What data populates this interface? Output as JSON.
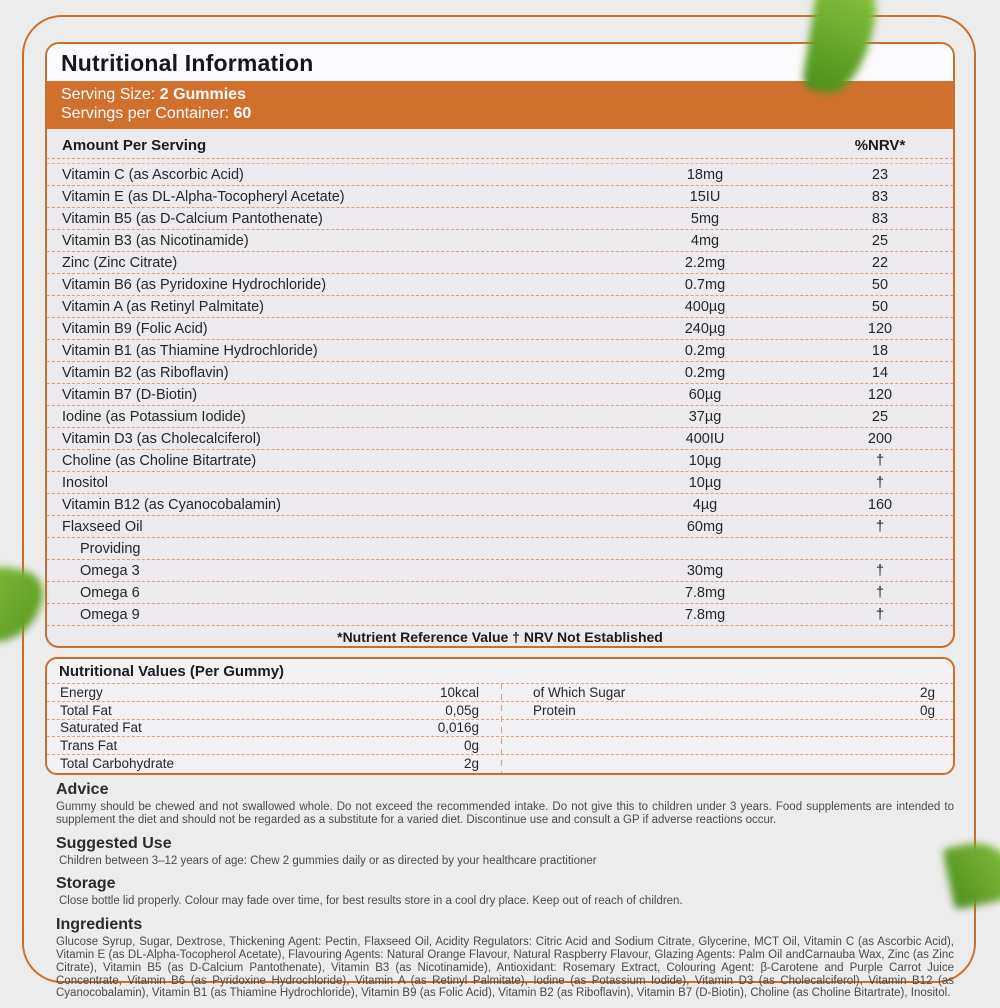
{
  "header": {
    "title": "Nutritional Information",
    "serving_size_label": "Serving Size: ",
    "serving_size_value": "2 Gummies",
    "servings_label": "Servings per Container: ",
    "servings_value": "60"
  },
  "table": {
    "col_amount": "Amount Per Serving",
    "col_nrv": "%NRV*",
    "rows": [
      {
        "name": "Vitamin C (as Ascorbic Acid)",
        "amount": "18mg",
        "nrv": "23"
      },
      {
        "name": "Vitamin E (as DL-Alpha-Tocopheryl Acetate)",
        "amount": "15IU",
        "nrv": "83"
      },
      {
        "name": "Vitamin B5 (as D-Calcium Pantothenate)",
        "amount": "5mg",
        "nrv": "83"
      },
      {
        "name": "Vitamin B3 (as Nicotinamide)",
        "amount": "4mg",
        "nrv": "25"
      },
      {
        "name": "Zinc (Zinc Citrate)",
        "amount": "2.2mg",
        "nrv": "22"
      },
      {
        "name": "Vitamin B6 (as Pyridoxine Hydrochloride)",
        "amount": "0.7mg",
        "nrv": "50"
      },
      {
        "name": "Vitamin A (as Retinyl Palmitate)",
        "amount": "400µg",
        "nrv": "50"
      },
      {
        "name": "Vitamin B9 (Folic Acid)",
        "amount": "240µg",
        "nrv": "120"
      },
      {
        "name": "Vitamin B1 (as Thiamine Hydrochloride)",
        "amount": "0.2mg",
        "nrv": "18"
      },
      {
        "name": "Vitamin B2 (as Riboflavin)",
        "amount": "0.2mg",
        "nrv": "14"
      },
      {
        "name": "Vitamin B7 (D-Biotin)",
        "amount": "60µg",
        "nrv": "120"
      },
      {
        "name": "Iodine (as Potassium Iodide)",
        "amount": "37µg",
        "nrv": "25"
      },
      {
        "name": "Vitamin D3 (as Cholecalciferol)",
        "amount": "400IU",
        "nrv": "200"
      },
      {
        "name": "Choline (as Choline Bitartrate)",
        "amount": "10µg",
        "nrv": "†"
      },
      {
        "name": "Inositol",
        "amount": "10µg",
        "nrv": "†"
      },
      {
        "name": "Vitamin B12 (as Cyanocobalamin)",
        "amount": "4µg",
        "nrv": "160"
      },
      {
        "name": "Flaxseed Oil",
        "amount": "60mg",
        "nrv": "†"
      },
      {
        "name": "Providing",
        "amount": "",
        "nrv": ""
      },
      {
        "name": "Omega 3",
        "amount": "30mg",
        "nrv": "†"
      },
      {
        "name": "Omega 6",
        "amount": "7.8mg",
        "nrv": "†"
      },
      {
        "name": "Omega 9",
        "amount": "7.8mg",
        "nrv": "†"
      }
    ],
    "footnote": "*Nutrient Reference Value † NRV Not Established"
  },
  "per_gummy": {
    "title": "Nutritional Values (Per Gummy)",
    "left_rows": [
      {
        "label": "Energy",
        "value": "10kcal"
      },
      {
        "label": "Total Fat",
        "value": "0,05g"
      },
      {
        "label": "Saturated Fat",
        "value": "0,016g"
      },
      {
        "label": "Trans Fat",
        "value": "0g"
      },
      {
        "label": "Total Carbohydrate",
        "value": "2g"
      }
    ],
    "right_rows": [
      {
        "label": "of Which Sugar",
        "value": "2g"
      },
      {
        "label": "Protein",
        "value": "0g"
      },
      {
        "label": "",
        "value": ""
      },
      {
        "label": "",
        "value": ""
      },
      {
        "label": "",
        "value": ""
      }
    ]
  },
  "sections": {
    "advice": {
      "heading": "Advice",
      "body": "Gummy should be chewed and not swallowed whole. Do not exceed the recommended intake. Do not give this to children under 3 years. Food supplements are intended to supplement the diet and should not be regarded as a substitute for a varied diet. Discontinue use and consult a GP if adverse reactions occur."
    },
    "suggested_use": {
      "heading": "Suggested Use",
      "body": "Children between 3–12 years of age: Chew 2 gummies daily or as directed by your healthcare practitioner"
    },
    "storage": {
      "heading": "Storage",
      "body": "Close bottle lid properly. Colour may fade over time, for best results store in a cool dry place. Keep out of reach of children."
    },
    "ingredients": {
      "heading": "Ingredients",
      "body": "Glucose Syrup, Sugar, Dextrose, Thickening Agent: Pectin, Flaxseed Oil, Acidity Regulators: Citric Acid and Sodium Citrate, Glycerine, MCT Oil, Vitamin C (as Ascorbic Acid), Vitamin E (as DL-Alpha-Tocopherol Acetate), Flavouring Agents: Natural Orange Flavour, Natural Raspberry Flavour, Glazing Agents: Palm Oil andCarnauba Wax, Zinc (as Zinc Citrate), Vitamin B5 (as D-Calcium Pantothenate), Vitamin B3 (as Nicotinamide), Antioxidant: Rosemary Extract, Colouring Agent: β-Carotene and Purple Carrot Juice Concentrate, Vitamin B6 (as Pyridoxine Hydrochloride), Vitamin A (as Retinyl Palmitate), Iodine (as Potassium Iodide), Vitamin D3 (as Cholecalciferol), Vitamin B12 (as Cyanocobalamin), Vitamin B1 (as Thiamine Hydrochloride), Vitamin B9 (as Folic Acid), Vitamin B2 (as Riboflavin), Vitamin B7 (D-Biotin), Choline (as Choline Bitartrate), Inositol."
    }
  },
  "colors": {
    "accent_orange": "#C96F2E",
    "banner_orange": "#D0702C",
    "dash_salmon": "#DE9C78",
    "table_bg": "#ECEAEE",
    "page_bg": "#EDECEC",
    "leaf_green": "#66A82A"
  }
}
